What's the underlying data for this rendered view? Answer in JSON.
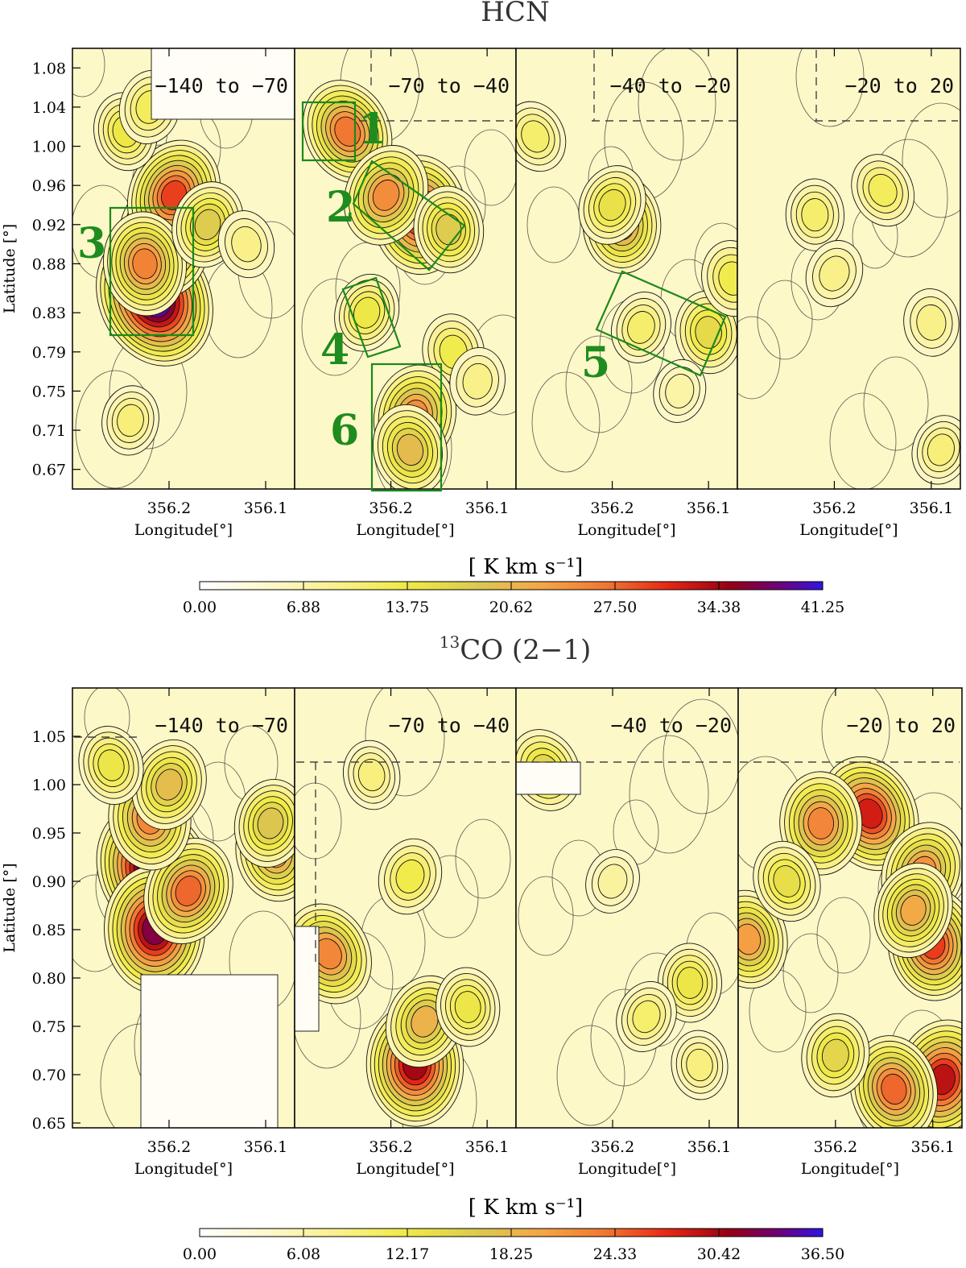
{
  "figure": {
    "top_title": "HCN",
    "bottom_title_sup": "13",
    "bottom_title": "CO (2−1)"
  },
  "chart_data": [
    {
      "type": "heatmap",
      "title": "HCN",
      "xlabel": "Longitude[°]",
      "ylabel": "Latitude [°]",
      "x_ticks": [
        "356.2",
        "356.1"
      ],
      "x_tick_values": [
        356.2,
        356.1
      ],
      "xlim": [
        356.3,
        356.07
      ],
      "y_ticks": [
        "1.08",
        "1.04",
        "1.00",
        "0.96",
        "0.92",
        "0.88",
        "0.83",
        "0.79",
        "0.75",
        "0.71",
        "0.67"
      ],
      "y_tick_values": [
        1.08,
        1.04,
        1.0,
        0.96,
        0.92,
        0.88,
        0.83,
        0.79,
        0.75,
        0.71,
        0.67
      ],
      "ylim": [
        0.65,
        1.1
      ],
      "panels": [
        "−140 to −70",
        "−70 to −40",
        "−40 to −20",
        "−20 to 20"
      ],
      "colorbar": {
        "label": "[ K km s⁻¹]",
        "min": 0.0,
        "max": 41.25,
        "ticks": [
          "0.00",
          "6.88",
          "13.75",
          "20.62",
          "27.50",
          "34.38",
          "41.25"
        ]
      },
      "regions": [
        {
          "id": "1",
          "panel": 1
        },
        {
          "id": "2",
          "panel": 1
        },
        {
          "id": "3",
          "panel": 0
        },
        {
          "id": "4",
          "panel": 1
        },
        {
          "id": "5",
          "panel": 2
        },
        {
          "id": "6",
          "panel": 1
        }
      ],
      "peaks": [
        {
          "panel": 0,
          "lon": 356.215,
          "lat": 0.845,
          "value": 40
        },
        {
          "panel": 0,
          "lon": 356.205,
          "lat": 0.905,
          "value": 28
        },
        {
          "panel": 0,
          "lon": 356.195,
          "lat": 0.95,
          "value": 27
        },
        {
          "panel": 0,
          "lon": 356.225,
          "lat": 0.88,
          "value": 23
        },
        {
          "panel": 0,
          "lon": 356.16,
          "lat": 0.92,
          "value": 15
        },
        {
          "panel": 0,
          "lon": 356.245,
          "lat": 1.015,
          "value": 11
        },
        {
          "panel": 0,
          "lon": 356.22,
          "lat": 1.04,
          "value": 9
        },
        {
          "panel": 0,
          "lon": 356.12,
          "lat": 0.9,
          "value": 6
        },
        {
          "panel": 0,
          "lon": 356.24,
          "lat": 0.72,
          "value": 7
        },
        {
          "panel": 1,
          "lon": 356.245,
          "lat": 1.015,
          "value": 24
        },
        {
          "panel": 1,
          "lon": 356.17,
          "lat": 0.93,
          "value": 30
        },
        {
          "panel": 1,
          "lon": 356.205,
          "lat": 0.95,
          "value": 22
        },
        {
          "panel": 1,
          "lon": 356.14,
          "lat": 0.915,
          "value": 15
        },
        {
          "panel": 1,
          "lon": 356.225,
          "lat": 0.83,
          "value": 11
        },
        {
          "panel": 1,
          "lon": 356.135,
          "lat": 0.79,
          "value": 10
        },
        {
          "panel": 1,
          "lon": 356.175,
          "lat": 0.725,
          "value": 22
        },
        {
          "panel": 1,
          "lon": 356.18,
          "lat": 0.69,
          "value": 17
        },
        {
          "panel": 1,
          "lon": 356.11,
          "lat": 0.76,
          "value": 6
        },
        {
          "panel": 2,
          "lon": 356.28,
          "lat": 1.01,
          "value": 8
        },
        {
          "panel": 2,
          "lon": 356.19,
          "lat": 0.92,
          "value": 20
        },
        {
          "panel": 2,
          "lon": 356.2,
          "lat": 0.94,
          "value": 12
        },
        {
          "panel": 2,
          "lon": 356.1,
          "lat": 0.81,
          "value": 13
        },
        {
          "panel": 2,
          "lon": 356.17,
          "lat": 0.815,
          "value": 8
        },
        {
          "panel": 2,
          "lon": 356.075,
          "lat": 0.865,
          "value": 10
        },
        {
          "panel": 2,
          "lon": 356.13,
          "lat": 0.75,
          "value": 4
        },
        {
          "panel": 3,
          "lon": 356.15,
          "lat": 0.955,
          "value": 9
        },
        {
          "panel": 3,
          "lon": 356.22,
          "lat": 0.93,
          "value": 8
        },
        {
          "panel": 3,
          "lon": 356.2,
          "lat": 0.87,
          "value": 6
        },
        {
          "panel": 3,
          "lon": 356.1,
          "lat": 0.82,
          "value": 6
        },
        {
          "panel": 3,
          "lon": 356.09,
          "lat": 0.69,
          "value": 7
        }
      ]
    },
    {
      "type": "heatmap",
      "title": "13CO (2-1)",
      "xlabel": "Longitude[°]",
      "ylabel": "Latitude [°]",
      "x_ticks": [
        "356.2",
        "356.1"
      ],
      "x_tick_values": [
        356.2,
        356.1
      ],
      "xlim": [
        356.3,
        356.07
      ],
      "y_ticks": [
        "1.05",
        "1.00",
        "0.95",
        "0.90",
        "0.85",
        "0.80",
        "0.75",
        "0.70",
        "0.65"
      ],
      "y_tick_values": [
        1.05,
        1.0,
        0.95,
        0.9,
        0.85,
        0.8,
        0.75,
        0.7,
        0.65
      ],
      "ylim": [
        0.645,
        1.1
      ],
      "panels": [
        "−140 to −70",
        "−70 to −40",
        "−40 to −20",
        "−20 to 20"
      ],
      "colorbar": {
        "label": "[ K km s⁻¹]",
        "min": 0.0,
        "max": 36.5,
        "ticks": [
          "0.00",
          "6.08",
          "12.17",
          "18.25",
          "24.33",
          "30.42",
          "36.50"
        ]
      },
      "peaks": [
        {
          "panel": 0,
          "lon": 356.215,
          "lat": 0.91,
          "value": 35
        },
        {
          "panel": 0,
          "lon": 356.215,
          "lat": 0.85,
          "value": 30
        },
        {
          "panel": 0,
          "lon": 356.18,
          "lat": 0.89,
          "value": 22
        },
        {
          "panel": 0,
          "lon": 356.22,
          "lat": 0.965,
          "value": 20
        },
        {
          "panel": 0,
          "lon": 356.2,
          "lat": 1.0,
          "value": 15
        },
        {
          "panel": 0,
          "lon": 356.09,
          "lat": 0.93,
          "value": 18
        },
        {
          "panel": 0,
          "lon": 356.095,
          "lat": 0.96,
          "value": 14
        },
        {
          "panel": 0,
          "lon": 356.26,
          "lat": 1.02,
          "value": 10
        },
        {
          "panel": 1,
          "lon": 356.265,
          "lat": 0.825,
          "value": 20
        },
        {
          "panel": 1,
          "lon": 356.175,
          "lat": 0.71,
          "value": 28
        },
        {
          "panel": 1,
          "lon": 356.165,
          "lat": 0.755,
          "value": 16
        },
        {
          "panel": 1,
          "lon": 356.12,
          "lat": 0.77,
          "value": 10
        },
        {
          "panel": 1,
          "lon": 356.18,
          "lat": 0.905,
          "value": 9
        },
        {
          "panel": 1,
          "lon": 356.22,
          "lat": 1.01,
          "value": 6
        },
        {
          "panel": 2,
          "lon": 356.27,
          "lat": 1.015,
          "value": 12
        },
        {
          "panel": 2,
          "lon": 356.12,
          "lat": 0.795,
          "value": 10
        },
        {
          "panel": 2,
          "lon": 356.165,
          "lat": 0.76,
          "value": 7
        },
        {
          "panel": 2,
          "lon": 356.11,
          "lat": 0.71,
          "value": 6
        },
        {
          "panel": 2,
          "lon": 356.2,
          "lat": 0.9,
          "value": 4
        },
        {
          "panel": 3,
          "lon": 356.165,
          "lat": 0.97,
          "value": 26
        },
        {
          "panel": 3,
          "lon": 356.215,
          "lat": 0.96,
          "value": 20
        },
        {
          "panel": 3,
          "lon": 356.11,
          "lat": 0.91,
          "value": 19
        },
        {
          "panel": 3,
          "lon": 356.1,
          "lat": 0.835,
          "value": 24
        },
        {
          "panel": 3,
          "lon": 356.12,
          "lat": 0.87,
          "value": 17
        },
        {
          "panel": 3,
          "lon": 356.29,
          "lat": 0.84,
          "value": 18
        },
        {
          "panel": 3,
          "lon": 356.09,
          "lat": 0.695,
          "value": 27
        },
        {
          "panel": 3,
          "lon": 356.14,
          "lat": 0.685,
          "value": 22
        },
        {
          "panel": 3,
          "lon": 356.2,
          "lat": 0.72,
          "value": 12
        },
        {
          "panel": 3,
          "lon": 356.25,
          "lat": 0.9,
          "value": 11
        }
      ]
    }
  ]
}
